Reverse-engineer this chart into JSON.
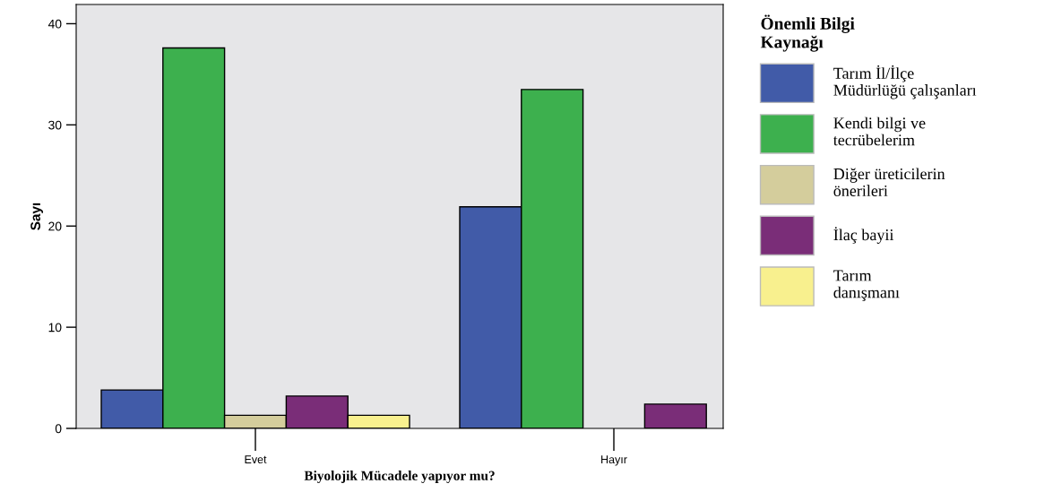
{
  "chart_data": {
    "type": "bar",
    "xlabel": "Biyolojik Mücadele yapıyor mu?",
    "ylabel": "Sayı",
    "legend_title": "Önemli Bilgi Kaynağı",
    "categories": [
      "Evet",
      "Hayır"
    ],
    "series": [
      {
        "name": "Tarım İl/İlçe Müdürlüğü çalışanları",
        "color": "#415ba8",
        "values": [
          3.8,
          21.9
        ]
      },
      {
        "name": "Kendi bilgi ve tecrübelerim",
        "color": "#3db04e",
        "values": [
          37.6,
          33.5
        ]
      },
      {
        "name": "Diğer üreticilerin önerileri",
        "color": "#d4cd9c",
        "values": [
          1.3,
          null
        ]
      },
      {
        "name": "İlaç bayii",
        "color": "#7a2d78",
        "values": [
          3.2,
          2.4
        ]
      },
      {
        "name": "Tarım danışmanı",
        "color": "#f8f08e",
        "values": [
          1.3,
          null
        ]
      }
    ],
    "ylim": [
      0,
      41.9
    ],
    "yticks": [
      0,
      10,
      20,
      30,
      40
    ],
    "grid": false,
    "legend": "right"
  }
}
